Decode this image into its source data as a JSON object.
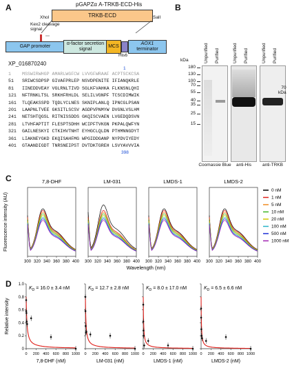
{
  "panels": {
    "a": "A",
    "b": "B",
    "c": "C",
    "d": "D"
  },
  "construct": {
    "title": "pGAPZα A-TRKB-ECD-His",
    "insert": "TRKB-ECD",
    "xhoi": "XhoI",
    "sali": "SalI",
    "kex2": "Kex2 cleavage signal",
    "gap_promoter": "GAP promoter",
    "alpha_factor": "α-factor secretion signal",
    "mcs": "MCS",
    "his": "His6",
    "aox1": "AOX1",
    "aox1_sub": "terminator"
  },
  "sequence": {
    "accession": "XP_016870240",
    "marker_1": "1",
    "marker_398": "398",
    "lines": [
      {
        "num": "1",
        "text": "MSSWIRWHGP AMARLWGFCW LVVGFWRAAF ACPTSCKCSA"
      },
      {
        "num": "51",
        "text": "SRIWCSDPSP GIVAFPRLEP NSVDPENITE IFIANQKRLE"
      },
      {
        "num": "81",
        "text": "IINEDDVEAY VGLRNLTIVD SGLKFVAHKA FLKNSNLQHI"
      },
      {
        "num": "121",
        "text": "NFTRNKLTSL SRKHFRHLDL SELILVGNPF TCSCDIMWIK"
      },
      {
        "num": "161",
        "text": "TLQEAKSSPD TQDLYCLNES SKNIPLANLQ IPNCGLPSAN"
      },
      {
        "num": "201",
        "text": "LAAPNLTVEE GKSITLSCSV AGDPVPNMYW DVGNLVSLHM"
      },
      {
        "num": "241",
        "text": "NETSHTQGSL RITNISSDDS GKQISCVAEN LVGEDQDSVN"
      },
      {
        "num": "281",
        "text": "LTVHFAPTIT FLESPTSDHH WCIPFTVKGN PKPALQWFYN"
      },
      {
        "num": "321",
        "text": "GAILNESKYI CTKIHVTNHT EYHGCLQLDN PTHMNNGDYT"
      },
      {
        "num": "361",
        "text": "LIAKNEYGKD EKQISAHFMG WPGIDDGANP NYPDVIYEDY"
      },
      {
        "num": "401",
        "text": "GTAANDIGDT TNRSNEIPST DVTDKTGREH LSVYAVVVIA"
      }
    ]
  },
  "blots": {
    "kda_label": "kDa",
    "markers": [
      "180",
      "130",
      "100",
      "70",
      "55",
      "40",
      "35",
      "25",
      "15"
    ],
    "right_marker": "70",
    "right_unit": "kDa",
    "lane_unpurified": "Unpurified",
    "lane_purified": "Purified",
    "captions": [
      "Coomassie Blue",
      "anti-His",
      "anti-TRKB"
    ]
  },
  "fluorescence": {
    "ylabel": "Fluorescence intensity (AU)",
    "xlabel": "Wavelength (nm)",
    "compounds": [
      "7,8-DHF",
      "LM-031",
      "LMDS-1",
      "LMDS-2"
    ],
    "xticks": [
      "300",
      "320",
      "340",
      "360",
      "380",
      "400"
    ],
    "legend": [
      {
        "label": "0 nM",
        "color": "#000000"
      },
      {
        "label": "1 nM",
        "color": "#e0201b"
      },
      {
        "label": "5 nM",
        "color": "#f08a20"
      },
      {
        "label": "10 nM",
        "color": "#3cb521"
      },
      {
        "label": "20 nM",
        "color": "#d2c500"
      },
      {
        "label": "100 nM",
        "color": "#27b3c7"
      },
      {
        "label": "500 nM",
        "color": "#1c2fd6"
      },
      {
        "label": "1000 nM",
        "color": "#a020b0"
      }
    ]
  },
  "binding": {
    "ylabel": "Relative intensity",
    "yticks": [
      "0",
      "0.2",
      "0.4",
      "0.6",
      "0.8",
      "1.0"
    ],
    "xticks": [
      "0",
      "200",
      "400",
      "600",
      "800",
      "1000"
    ],
    "curve_color": "#e0201b",
    "plots": [
      {
        "kd": "16.0 ± 3.4 nM",
        "kd_value": 16.0,
        "xlabel": "7,8-DHF (nM)",
        "points": [
          [
            0,
            0.75
          ],
          [
            1,
            0.58
          ],
          [
            5,
            0.55
          ],
          [
            10,
            0.42
          ],
          [
            20,
            0.38
          ],
          [
            100,
            0.47
          ],
          [
            500,
            0.18
          ],
          [
            1000,
            0.0
          ]
        ]
      },
      {
        "kd": "12.7 ± 2.8 nM",
        "kd_value": 12.7,
        "xlabel": "LM-031 (nM)",
        "points": [
          [
            0,
            0.8
          ],
          [
            1,
            0.58
          ],
          [
            5,
            0.35
          ],
          [
            10,
            0.25
          ],
          [
            20,
            0.26
          ],
          [
            100,
            0.22
          ],
          [
            500,
            0.2
          ],
          [
            1000,
            0.0
          ]
        ]
      },
      {
        "kd": "8.0 ± 17.0 nM",
        "kd_value": 8.0,
        "xlabel": "LMDS-1 (nM)",
        "points": [
          [
            0,
            0.68
          ],
          [
            1,
            0.42
          ],
          [
            5,
            0.28
          ],
          [
            10,
            0.2
          ],
          [
            20,
            0.05
          ],
          [
            100,
            0.12
          ],
          [
            500,
            0.05
          ],
          [
            1000,
            0.0
          ]
        ]
      },
      {
        "kd": "6.5 ± 6.6 nM",
        "kd_value": 6.5,
        "xlabel": "LMDS-2 (nM)",
        "points": [
          [
            0,
            0.62
          ],
          [
            1,
            0.48
          ],
          [
            5,
            0.3
          ],
          [
            10,
            0.2
          ],
          [
            20,
            0.16
          ],
          [
            100,
            0.12
          ],
          [
            500,
            0.18
          ],
          [
            1000,
            0.0
          ]
        ]
      }
    ]
  }
}
